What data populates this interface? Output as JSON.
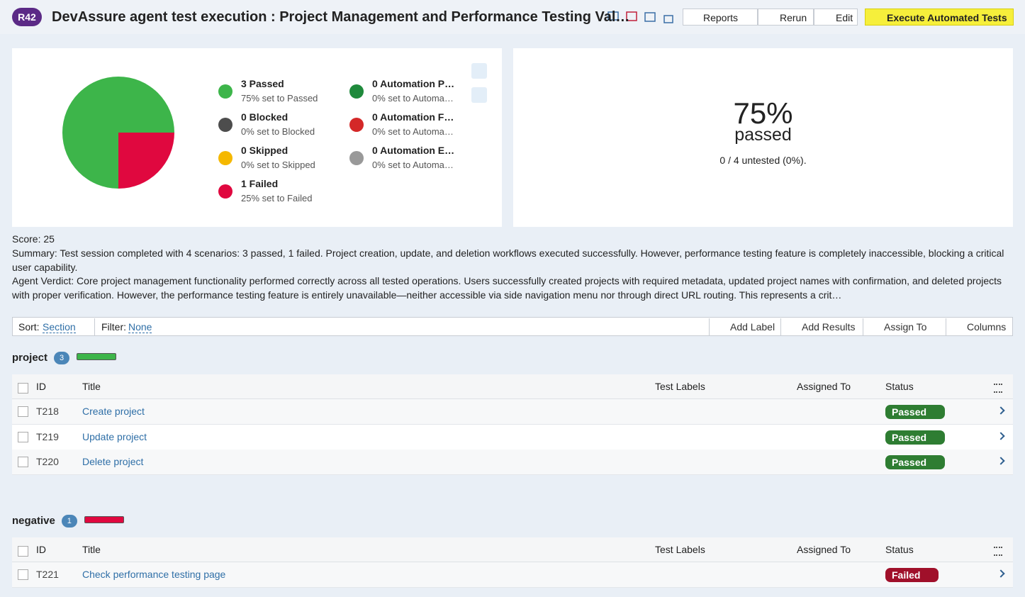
{
  "header": {
    "badge": "R42",
    "title": "DevAssure agent test execution : Project Management and Performance Testing Val…",
    "buttons": [
      "Reports",
      "Rerun",
      "Edit"
    ],
    "execute": "Execute Automated Tests"
  },
  "summary_chart": {
    "slices": [
      {
        "value": 3,
        "color": "#3db54a"
      },
      {
        "value": 1,
        "color": "#e0083f"
      }
    ],
    "legend": [
      {
        "label": "3 Passed",
        "sub": "75% set to Passed",
        "color": "#3db54a"
      },
      {
        "label": "0 Blocked",
        "sub": "0% set to Blocked",
        "color": "#4d4d4d"
      },
      {
        "label": "0 Skipped",
        "sub": "0% set to Skipped",
        "color": "#f5b800"
      },
      {
        "label": "1 Failed",
        "sub": "25% set to Failed",
        "color": "#e0083f"
      },
      {
        "label": "0 Automation P…",
        "sub": "0% set to Automa…",
        "color": "#1f8a3c"
      },
      {
        "label": "0 Automation F…",
        "sub": "0% set to Automa…",
        "color": "#d42828"
      },
      {
        "label": "0 Automation E…",
        "sub": "0% set to Automa…",
        "color": "#999999"
      }
    ]
  },
  "stats": {
    "percent": "75%",
    "label": "passed",
    "untested": "0 / 4 untested (0%)."
  },
  "score": "Score: 25",
  "summary": "Summary: Test session completed with 4 scenarios: 3 passed, 1 failed. Project creation, update, and deletion workflows executed successfully. However, performance testing feature is completely inaccessible, blocking a critical user capability.",
  "verdict": "Agent Verdict: Core project management functionality performed correctly across all tested operations. Users successfully created projects with required metadata, updated project names with confirmation, and deleted projects with proper verification. However, the performance testing feature is entirely unavailable—neither accessible via side navigation menu nor through direct URL routing. This represents a crit…",
  "toolbar": {
    "sort_label": "Sort:",
    "sort_value": "Section",
    "filter_label": "Filter:",
    "filter_value": "None",
    "actions": [
      "Add Label",
      "Add Results",
      "Assign To",
      "Columns"
    ]
  },
  "sections": [
    {
      "name": "project",
      "count": 3,
      "bar_color": "#3db54a",
      "columns": [
        "ID",
        "Title",
        "Test Labels",
        "Assigned To",
        "Status"
      ],
      "rows": [
        {
          "id": "T218",
          "title": "Create project",
          "status": "Passed",
          "status_color": "#2e7d32"
        },
        {
          "id": "T219",
          "title": "Update project",
          "status": "Passed",
          "status_color": "#2e7d32"
        },
        {
          "id": "T220",
          "title": "Delete project",
          "status": "Passed",
          "status_color": "#2e7d32"
        }
      ]
    },
    {
      "name": "negative",
      "count": 1,
      "bar_color": "#e0083f",
      "columns": [
        "ID",
        "Title",
        "Test Labels",
        "Assigned To",
        "Status"
      ],
      "rows": [
        {
          "id": "T221",
          "title": "Check performance testing page",
          "status": "Failed",
          "status_color": "#a0102a"
        }
      ]
    }
  ]
}
